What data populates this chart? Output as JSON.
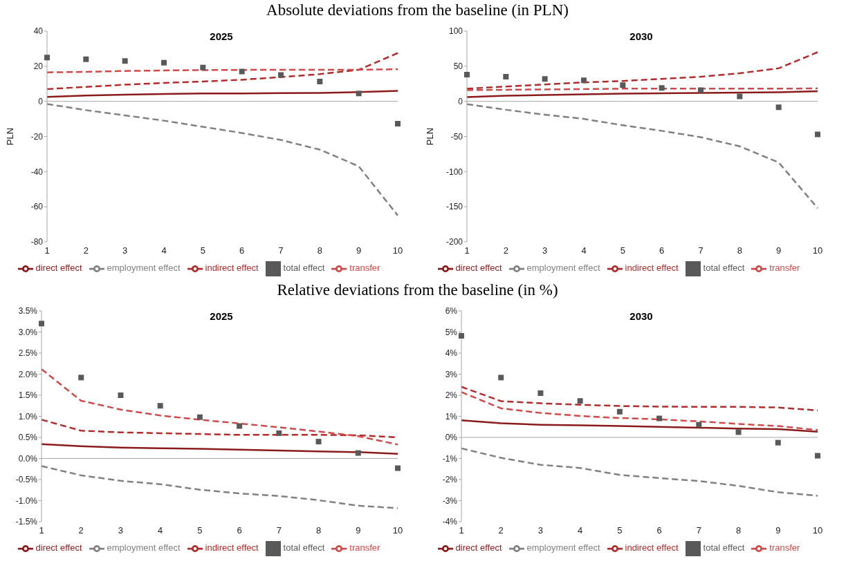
{
  "chart_data": [
    {
      "type": "line",
      "title": "2025",
      "annotations": [
        "Absolute deviations from the baseline (in PLN)"
      ],
      "ylabel": "PLN",
      "categories": [
        "1",
        "2",
        "3",
        "4",
        "5",
        "6",
        "7",
        "8",
        "9",
        "10"
      ],
      "ylim": [
        -80,
        40
      ],
      "yticks": [
        -80,
        -60,
        -40,
        -20,
        0,
        20,
        40
      ],
      "legend": "bottom",
      "ref_lines": [
        {
          "axis": "y",
          "value": 0,
          "color": "#a6a6a6"
        }
      ],
      "series": [
        {
          "name": "direct effect",
          "color": "#8b1a1a",
          "line_style": "solid",
          "values": [
            2.5,
            3.3,
            3.8,
            4.2,
            4.5,
            4.5,
            4.7,
            4.8,
            5.3,
            6
          ]
        },
        {
          "name": "indirect effect",
          "color": "#b22a2a",
          "line_style": "dashed",
          "values": [
            7,
            8.2,
            9.5,
            10.5,
            11.3,
            12.3,
            13.8,
            15.5,
            18,
            27.5
          ]
        },
        {
          "name": "transfer",
          "color": "#d04848",
          "line_style": "dashed",
          "values": [
            16.5,
            16.8,
            17.3,
            17.6,
            17.8,
            17.9,
            18,
            18,
            18,
            18.3
          ]
        },
        {
          "name": "employment effect",
          "color": "#808080",
          "line_style": "dashed",
          "values": [
            -1.5,
            -5,
            -8,
            -11,
            -14.5,
            -18,
            -22,
            -27.5,
            -37,
            -65
          ]
        },
        {
          "name": "total effect",
          "type": "scatter",
          "marker": "square",
          "color": "#595959",
          "values": [
            25,
            24,
            23,
            22,
            19.2,
            17,
            15,
            11.3,
            4.5,
            -12.7
          ]
        }
      ]
    },
    {
      "type": "line",
      "title": "2030",
      "ylabel": "PLN",
      "categories": [
        "1",
        "2",
        "3",
        "4",
        "5",
        "6",
        "7",
        "8",
        "9",
        "10"
      ],
      "ylim": [
        -200,
        100
      ],
      "yticks": [
        -200,
        -150,
        -100,
        -50,
        0,
        50,
        100
      ],
      "legend": "bottom",
      "ref_lines": [
        {
          "axis": "y",
          "value": 0,
          "color": "#a6a6a6"
        }
      ],
      "series": [
        {
          "name": "direct effect",
          "color": "#8b1a1a",
          "line_style": "solid",
          "values": [
            6,
            8,
            9,
            10,
            11,
            11.5,
            12,
            12.5,
            13,
            14.5
          ]
        },
        {
          "name": "indirect effect",
          "color": "#b22a2a",
          "line_style": "dashed",
          "values": [
            18,
            21,
            24,
            27,
            29,
            32,
            35,
            40,
            47,
            70
          ]
        },
        {
          "name": "transfer",
          "color": "#d04848",
          "line_style": "dashed",
          "values": [
            16,
            16.5,
            17,
            17.5,
            18,
            18,
            18,
            18,
            18,
            18.5
          ]
        },
        {
          "name": "employment effect",
          "color": "#808080",
          "line_style": "dashed",
          "values": [
            -4,
            -12,
            -19,
            -25,
            -34,
            -42,
            -51,
            -64,
            -87,
            -152
          ]
        },
        {
          "name": "total effect",
          "type": "scatter",
          "marker": "square",
          "color": "#595959",
          "values": [
            38,
            35,
            32,
            30,
            23,
            19,
            16,
            7,
            -8.5,
            -47
          ]
        }
      ]
    },
    {
      "type": "line",
      "title": "2025",
      "annotations": [
        "Relative deviations from the baseline (in %)"
      ],
      "categories": [
        "1",
        "2",
        "3",
        "4",
        "5",
        "6",
        "7",
        "8",
        "9",
        "10"
      ],
      "ylim": [
        -1.5,
        3.5
      ],
      "yticks": [
        {
          "value": -1.5,
          "label": "-1.5%"
        },
        {
          "value": -1,
          "label": "-1.0%"
        },
        {
          "value": -0.5,
          "label": "-0.5%"
        },
        {
          "value": 0,
          "label": "0.0%"
        },
        {
          "value": 0.5,
          "label": "0.5%"
        },
        {
          "value": 1,
          "label": "1.0%"
        },
        {
          "value": 1.5,
          "label": "1.5%"
        },
        {
          "value": 2,
          "label": "2.0%"
        },
        {
          "value": 2.5,
          "label": "2.5%"
        },
        {
          "value": 3,
          "label": "3.0%"
        },
        {
          "value": 3.5,
          "label": "3.5%"
        }
      ],
      "legend": "bottom",
      "ref_lines": [
        {
          "axis": "y",
          "value": 0,
          "color": "#a6a6a6"
        }
      ],
      "series": [
        {
          "name": "direct effect",
          "color": "#8b1a1a",
          "line_style": "solid",
          "values": [
            0.34,
            0.29,
            0.26,
            0.24,
            0.23,
            0.21,
            0.19,
            0.17,
            0.15,
            0.11
          ]
        },
        {
          "name": "indirect effect",
          "color": "#b22a2a",
          "line_style": "dashed",
          "values": [
            0.92,
            0.66,
            0.62,
            0.6,
            0.58,
            0.56,
            0.56,
            0.56,
            0.55,
            0.5
          ]
        },
        {
          "name": "transfer",
          "color": "#d04848",
          "line_style": "dashed",
          "values": [
            2.12,
            1.37,
            1.16,
            1.02,
            0.92,
            0.83,
            0.74,
            0.64,
            0.53,
            0.33
          ]
        },
        {
          "name": "employment effect",
          "color": "#808080",
          "line_style": "dashed",
          "values": [
            -0.18,
            -0.4,
            -0.53,
            -0.61,
            -0.74,
            -0.83,
            -0.89,
            -0.99,
            -1.12,
            -1.18
          ]
        },
        {
          "name": "total effect",
          "type": "scatter",
          "marker": "square",
          "color": "#595959",
          "values": [
            3.2,
            1.92,
            1.5,
            1.25,
            0.98,
            0.77,
            0.6,
            0.4,
            0.13,
            -0.23
          ]
        }
      ]
    },
    {
      "type": "line",
      "title": "2030",
      "categories": [
        "1",
        "2",
        "3",
        "4",
        "5",
        "6",
        "7",
        "8",
        "9",
        "10"
      ],
      "ylim": [
        -4,
        6
      ],
      "yticks": [
        {
          "value": -4,
          "label": "-4%"
        },
        {
          "value": -3,
          "label": "-3%"
        },
        {
          "value": -2,
          "label": "-2%"
        },
        {
          "value": -1,
          "label": "-1%"
        },
        {
          "value": 0,
          "label": "0%"
        },
        {
          "value": 1,
          "label": "1%"
        },
        {
          "value": 2,
          "label": "2%"
        },
        {
          "value": 3,
          "label": "3%"
        },
        {
          "value": 4,
          "label": "4%"
        },
        {
          "value": 5,
          "label": "5%"
        },
        {
          "value": 6,
          "label": "6%"
        }
      ],
      "legend": "bottom",
      "ref_lines": [
        {
          "axis": "y",
          "value": 0,
          "color": "#a6a6a6"
        }
      ],
      "series": [
        {
          "name": "direct effect",
          "color": "#8b1a1a",
          "line_style": "solid",
          "values": [
            0.81,
            0.67,
            0.6,
            0.57,
            0.54,
            0.5,
            0.46,
            0.42,
            0.39,
            0.27
          ]
        },
        {
          "name": "indirect effect",
          "color": "#b22a2a",
          "line_style": "dashed",
          "values": [
            2.4,
            1.72,
            1.62,
            1.55,
            1.49,
            1.46,
            1.45,
            1.45,
            1.42,
            1.28
          ]
        },
        {
          "name": "transfer",
          "color": "#d04848",
          "line_style": "dashed",
          "values": [
            2.15,
            1.38,
            1.16,
            1.02,
            0.92,
            0.86,
            0.76,
            0.64,
            0.54,
            0.35
          ]
        },
        {
          "name": "employment effect",
          "color": "#808080",
          "line_style": "dashed",
          "values": [
            -0.52,
            -0.97,
            -1.3,
            -1.45,
            -1.78,
            -1.93,
            -2.07,
            -2.3,
            -2.6,
            -2.77
          ]
        },
        {
          "name": "total effect",
          "type": "scatter",
          "marker": "square",
          "color": "#595959",
          "values": [
            4.82,
            2.84,
            2.1,
            1.73,
            1.22,
            0.9,
            0.6,
            0.25,
            -0.25,
            -0.87
          ]
        }
      ]
    }
  ]
}
